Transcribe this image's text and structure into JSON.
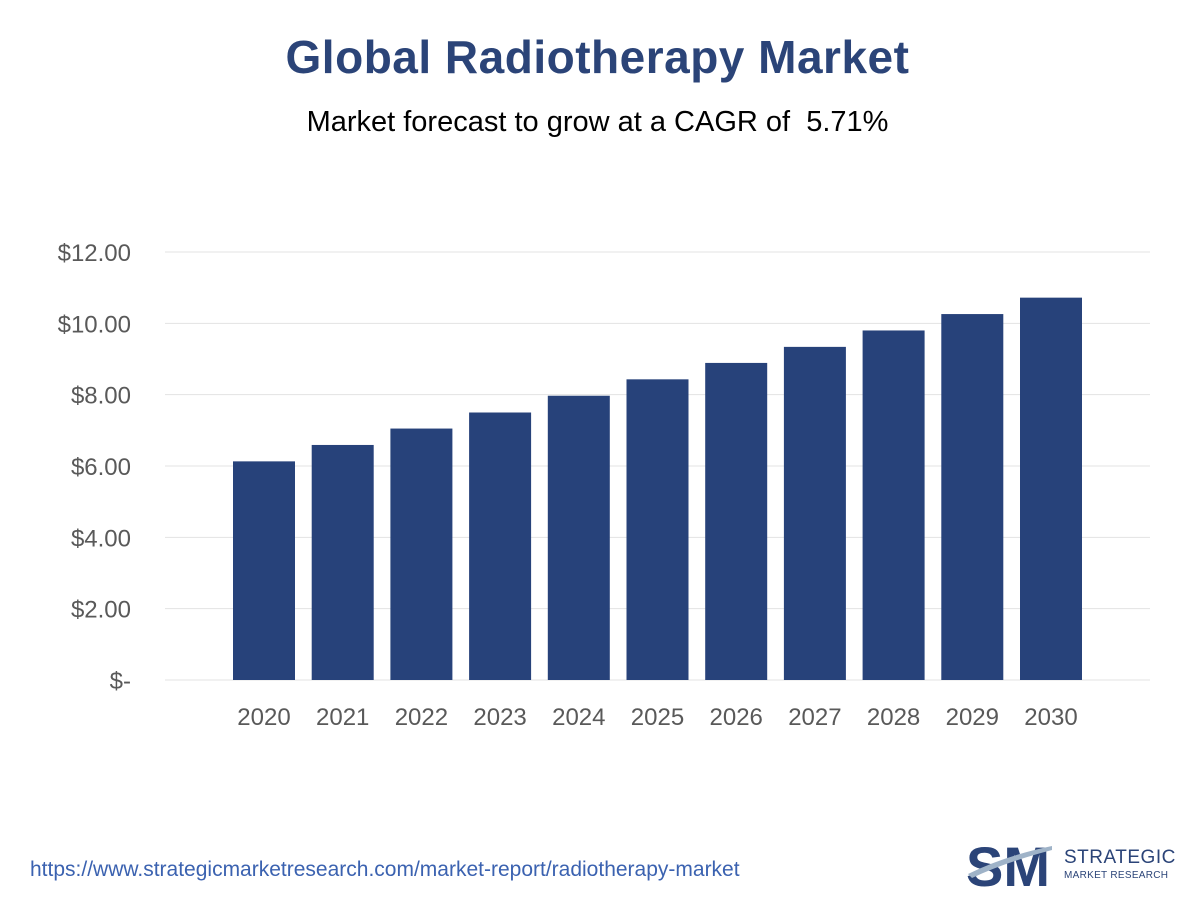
{
  "chart_data": {
    "type": "bar",
    "title": "Global Radiotherapy Market",
    "subtitle": "Market forecast to grow at a CAGR of  5.71%",
    "categories": [
      "2020",
      "2021",
      "2022",
      "2023",
      "2024",
      "2025",
      "2026",
      "2027",
      "2028",
      "2029",
      "2030"
    ],
    "values": [
      6.13,
      6.59,
      7.05,
      7.5,
      7.97,
      8.43,
      8.89,
      9.34,
      9.8,
      10.26,
      10.72
    ],
    "ylim": [
      0,
      12
    ],
    "yticks": [
      {
        "value": 0,
        "label": "$-"
      },
      {
        "value": 2,
        "label": "$2.00"
      },
      {
        "value": 4,
        "label": "$4.00"
      },
      {
        "value": 6,
        "label": "$6.00"
      },
      {
        "value": 8,
        "label": "$8.00"
      },
      {
        "value": 10,
        "label": "$10.00"
      },
      {
        "value": 12,
        "label": "$12.00"
      }
    ],
    "grid": true,
    "legend": "none",
    "bar_color": "#27427a",
    "grid_color": "#e3e3e3"
  },
  "footer": {
    "url": "https://www.strategicmarketresearch.com/market-report/radiotherapy-market",
    "logo_line1": "STRATEGIC",
    "logo_line2": "MARKET RESEARCH",
    "logo_mark": "SM"
  }
}
